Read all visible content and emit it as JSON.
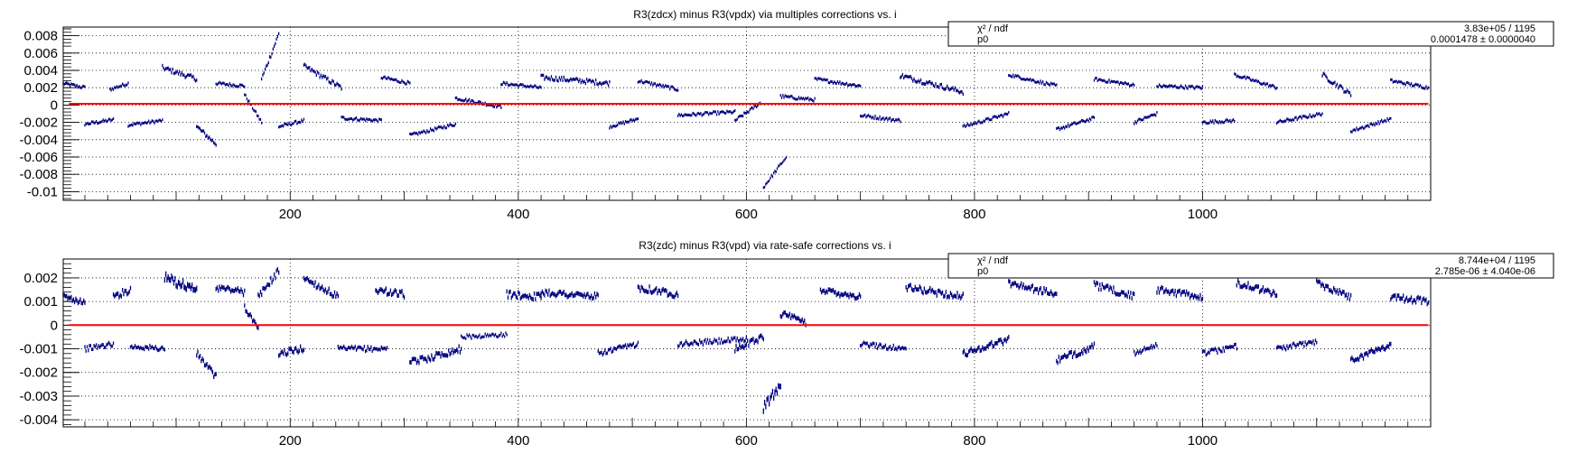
{
  "chart_data": [
    {
      "type": "scatter",
      "title": "R3(zdcx) minus R3(vpdx) via multiples corrections vs. i",
      "xlabel": "",
      "ylabel": "",
      "xlim": [
        1,
        1200
      ],
      "ylim": [
        -0.011,
        0.009
      ],
      "grid": true,
      "x_ticks": [
        200,
        400,
        600,
        800,
        1000
      ],
      "x_tick_labels": [
        "200",
        "400",
        "600",
        "800",
        "1000"
      ],
      "y_ticks": [
        0.008,
        0.006,
        0.004,
        0.002,
        0,
        -0.002,
        -0.004,
        -0.006,
        -0.008,
        -0.01
      ],
      "y_tick_labels": [
        "0.008",
        "0.006",
        "0.004",
        "0.002",
        "0",
        "-0.002",
        "-0.004",
        "-0.006",
        "-0.008",
        "-0.01"
      ],
      "fit": {
        "p0": 0.0001478,
        "color": "#ff0000"
      },
      "stats_box": {
        "row1_label": "χ² / ndf",
        "row1_value": "3.83e+05 / 1195",
        "row2_label": "p0",
        "row2_value": "0.0001478 ± 0.0000040"
      },
      "marker_color": "#00007f",
      "segments": [
        {
          "x": [
            1,
            20
          ],
          "y": [
            0.0025,
            0.002
          ],
          "err": 0.0002
        },
        {
          "x": [
            20,
            45
          ],
          "y": [
            -0.0022,
            -0.0017
          ],
          "err": 0.0002
        },
        {
          "x": [
            42,
            58
          ],
          "y": [
            0.0018,
            0.0025
          ],
          "err": 0.0002
        },
        {
          "x": [
            58,
            88
          ],
          "y": [
            -0.0023,
            -0.0018
          ],
          "err": 0.0002
        },
        {
          "x": [
            88,
            118
          ],
          "y": [
            0.0043,
            0.003
          ],
          "err": 0.0003
        },
        {
          "x": [
            118,
            135
          ],
          "y": [
            -0.0025,
            -0.0045
          ],
          "err": 0.0003
        },
        {
          "x": [
            135,
            160
          ],
          "y": [
            0.0025,
            0.0022
          ],
          "err": 0.0002
        },
        {
          "x": [
            160,
            175
          ],
          "y": [
            0.0012,
            -0.002
          ],
          "err": 0.0002
        },
        {
          "x": [
            175,
            190
          ],
          "y": [
            0.003,
            0.0082
          ],
          "err": 0.0003
        },
        {
          "x": [
            190,
            212
          ],
          "y": [
            -0.0025,
            -0.0018
          ],
          "err": 0.0002
        },
        {
          "x": [
            212,
            245
          ],
          "y": [
            0.0045,
            0.002
          ],
          "err": 0.0003
        },
        {
          "x": [
            245,
            280
          ],
          "y": [
            -0.0015,
            -0.0018
          ],
          "err": 0.0002
        },
        {
          "x": [
            280,
            305
          ],
          "y": [
            0.0032,
            0.0025
          ],
          "err": 0.0002
        },
        {
          "x": [
            305,
            345
          ],
          "y": [
            -0.0035,
            -0.0022
          ],
          "err": 0.0002
        },
        {
          "x": [
            345,
            385
          ],
          "y": [
            0.0008,
            -0.0002
          ],
          "err": 0.0002
        },
        {
          "x": [
            385,
            420
          ],
          "y": [
            0.0025,
            0.002
          ],
          "err": 0.0002
        },
        {
          "x": [
            420,
            480
          ],
          "y": [
            0.0032,
            0.0025
          ],
          "err": 0.0003
        },
        {
          "x": [
            480,
            505
          ],
          "y": [
            -0.0025,
            -0.0016
          ],
          "err": 0.0002
        },
        {
          "x": [
            505,
            540
          ],
          "y": [
            0.0028,
            0.0018
          ],
          "err": 0.0002
        },
        {
          "x": [
            540,
            590
          ],
          "y": [
            -0.0012,
            -0.0008
          ],
          "err": 0.0002
        },
        {
          "x": [
            590,
            612
          ],
          "y": [
            -0.0018,
            0.0002
          ],
          "err": 0.0002
        },
        {
          "x": [
            615,
            635
          ],
          "y": [
            -0.0095,
            -0.006
          ],
          "err": 0.0002
        },
        {
          "x": [
            630,
            660
          ],
          "y": [
            0.001,
            0.0006
          ],
          "err": 0.0002
        },
        {
          "x": [
            660,
            700
          ],
          "y": [
            0.003,
            0.0022
          ],
          "err": 0.0002
        },
        {
          "x": [
            700,
            735
          ],
          "y": [
            -0.0012,
            -0.0018
          ],
          "err": 0.0002
        },
        {
          "x": [
            735,
            790
          ],
          "y": [
            0.0034,
            0.0015
          ],
          "err": 0.0003
        },
        {
          "x": [
            790,
            830
          ],
          "y": [
            -0.0025,
            -0.001
          ],
          "err": 0.0002
        },
        {
          "x": [
            830,
            872
          ],
          "y": [
            0.0035,
            0.0022
          ],
          "err": 0.0002
        },
        {
          "x": [
            872,
            905
          ],
          "y": [
            -0.0028,
            -0.0015
          ],
          "err": 0.0002
        },
        {
          "x": [
            905,
            940
          ],
          "y": [
            0.003,
            0.0023
          ],
          "err": 0.0002
        },
        {
          "x": [
            940,
            960
          ],
          "y": [
            -0.002,
            -0.001
          ],
          "err": 0.0002
        },
        {
          "x": [
            960,
            1000
          ],
          "y": [
            0.0022,
            0.002
          ],
          "err": 0.0002
        },
        {
          "x": [
            1000,
            1028
          ],
          "y": [
            -0.002,
            -0.0018
          ],
          "err": 0.0002
        },
        {
          "x": [
            1028,
            1065
          ],
          "y": [
            0.0035,
            0.002
          ],
          "err": 0.0002
        },
        {
          "x": [
            1065,
            1105
          ],
          "y": [
            -0.002,
            -0.001
          ],
          "err": 0.0002
        },
        {
          "x": [
            1105,
            1130
          ],
          "y": [
            0.0035,
            0.0012
          ],
          "err": 0.0003
        },
        {
          "x": [
            1130,
            1165
          ],
          "y": [
            -0.003,
            -0.0016
          ],
          "err": 0.0002
        },
        {
          "x": [
            1165,
            1198
          ],
          "y": [
            0.0028,
            0.002
          ],
          "err": 0.0002
        }
      ]
    },
    {
      "type": "scatter",
      "title": "R3(zdc) minus R3(vpd) via rate-safe corrections vs. i",
      "xlabel": "",
      "ylabel": "",
      "xlim": [
        1,
        1200
      ],
      "ylim": [
        -0.0043,
        0.0028
      ],
      "grid": true,
      "x_ticks": [
        200,
        400,
        600,
        800,
        1000
      ],
      "x_tick_labels": [
        "200",
        "400",
        "600",
        "800",
        "1000"
      ],
      "y_ticks": [
        0.002,
        0.001,
        0,
        -0.001,
        -0.002,
        -0.003,
        -0.004
      ],
      "y_tick_labels": [
        "0.002",
        "0.001",
        "0",
        "-0.001",
        "-0.002",
        "-0.003",
        "-0.004"
      ],
      "fit": {
        "p0": 2.785e-06,
        "color": "#ff0000"
      },
      "stats_box": {
        "row1_label": "χ² / ndf",
        "row1_value": "8.744e+04 / 1195",
        "row2_label": "p0",
        "row2_value": "2.785e-06 ± 4.040e-06"
      },
      "marker_color": "#00007f",
      "segments": [
        {
          "x": [
            1,
            20
          ],
          "y": [
            0.0012,
            0.001
          ],
          "err": 0.00015
        },
        {
          "x": [
            20,
            45
          ],
          "y": [
            -0.001,
            -0.0008
          ],
          "err": 0.00012
        },
        {
          "x": [
            45,
            60
          ],
          "y": [
            0.0012,
            0.0015
          ],
          "err": 0.00015
        },
        {
          "x": [
            60,
            90
          ],
          "y": [
            -0.0009,
            -0.001
          ],
          "err": 0.00012
        },
        {
          "x": [
            90,
            118
          ],
          "y": [
            0.002,
            0.0015
          ],
          "err": 0.0002
        },
        {
          "x": [
            118,
            135
          ],
          "y": [
            -0.0012,
            -0.0022
          ],
          "err": 0.00015
        },
        {
          "x": [
            135,
            160
          ],
          "y": [
            0.0016,
            0.0014
          ],
          "err": 0.00015
        },
        {
          "x": [
            160,
            172
          ],
          "y": [
            0.0008,
            -0.0002
          ],
          "err": 0.00015
        },
        {
          "x": [
            172,
            190
          ],
          "y": [
            0.0012,
            0.0023
          ],
          "err": 0.00015
        },
        {
          "x": [
            190,
            212
          ],
          "y": [
            -0.0012,
            -0.001
          ],
          "err": 0.00015
        },
        {
          "x": [
            212,
            242
          ],
          "y": [
            0.002,
            0.0012
          ],
          "err": 0.00015
        },
        {
          "x": [
            242,
            285
          ],
          "y": [
            -0.001,
            -0.001
          ],
          "err": 0.00012
        },
        {
          "x": [
            275,
            300
          ],
          "y": [
            0.0015,
            0.0013
          ],
          "err": 0.00015
        },
        {
          "x": [
            305,
            350
          ],
          "y": [
            -0.0016,
            -0.001
          ],
          "err": 0.00015
        },
        {
          "x": [
            350,
            390
          ],
          "y": [
            -0.0005,
            -0.0004
          ],
          "err": 0.0001
        },
        {
          "x": [
            390,
            420
          ],
          "y": [
            0.0013,
            0.0012
          ],
          "err": 0.00015
        },
        {
          "x": [
            420,
            470
          ],
          "y": [
            0.0014,
            0.0012
          ],
          "err": 0.00015
        },
        {
          "x": [
            470,
            505
          ],
          "y": [
            -0.0012,
            -0.0008
          ],
          "err": 0.00012
        },
        {
          "x": [
            505,
            540
          ],
          "y": [
            0.0016,
            0.0013
          ],
          "err": 0.00015
        },
        {
          "x": [
            540,
            600
          ],
          "y": [
            -0.0008,
            -0.0006
          ],
          "err": 0.00012
        },
        {
          "x": [
            590,
            615
          ],
          "y": [
            -0.001,
            -0.0005
          ],
          "err": 0.00015
        },
        {
          "x": [
            615,
            630
          ],
          "y": [
            -0.0035,
            -0.0025
          ],
          "err": 0.0002
        },
        {
          "x": [
            630,
            652
          ],
          "y": [
            0.0005,
            0.0001
          ],
          "err": 0.00015
        },
        {
          "x": [
            665,
            700
          ],
          "y": [
            0.0015,
            0.0012
          ],
          "err": 0.00015
        },
        {
          "x": [
            700,
            740
          ],
          "y": [
            -0.0008,
            -0.001
          ],
          "err": 0.00012
        },
        {
          "x": [
            740,
            790
          ],
          "y": [
            0.0016,
            0.0012
          ],
          "err": 0.00015
        },
        {
          "x": [
            790,
            830
          ],
          "y": [
            -0.0012,
            -0.0006
          ],
          "err": 0.00015
        },
        {
          "x": [
            830,
            872
          ],
          "y": [
            0.0018,
            0.0013
          ],
          "err": 0.00015
        },
        {
          "x": [
            872,
            905
          ],
          "y": [
            -0.0015,
            -0.0009
          ],
          "err": 0.00015
        },
        {
          "x": [
            905,
            940
          ],
          "y": [
            0.0017,
            0.0012
          ],
          "err": 0.00015
        },
        {
          "x": [
            940,
            960
          ],
          "y": [
            -0.0012,
            -0.0008
          ],
          "err": 0.00012
        },
        {
          "x": [
            960,
            1000
          ],
          "y": [
            0.0015,
            0.0012
          ],
          "err": 0.00015
        },
        {
          "x": [
            1000,
            1030
          ],
          "y": [
            -0.0012,
            -0.0009
          ],
          "err": 0.00012
        },
        {
          "x": [
            1030,
            1065
          ],
          "y": [
            0.0018,
            0.0013
          ],
          "err": 0.00015
        },
        {
          "x": [
            1065,
            1100
          ],
          "y": [
            -0.001,
            -0.0007
          ],
          "err": 0.00012
        },
        {
          "x": [
            1100,
            1130
          ],
          "y": [
            0.0018,
            0.0012
          ],
          "err": 0.00015
        },
        {
          "x": [
            1130,
            1165
          ],
          "y": [
            -0.0015,
            -0.0008
          ],
          "err": 0.00015
        },
        {
          "x": [
            1165,
            1198
          ],
          "y": [
            0.0012,
            0.001
          ],
          "err": 0.00015
        }
      ]
    }
  ]
}
